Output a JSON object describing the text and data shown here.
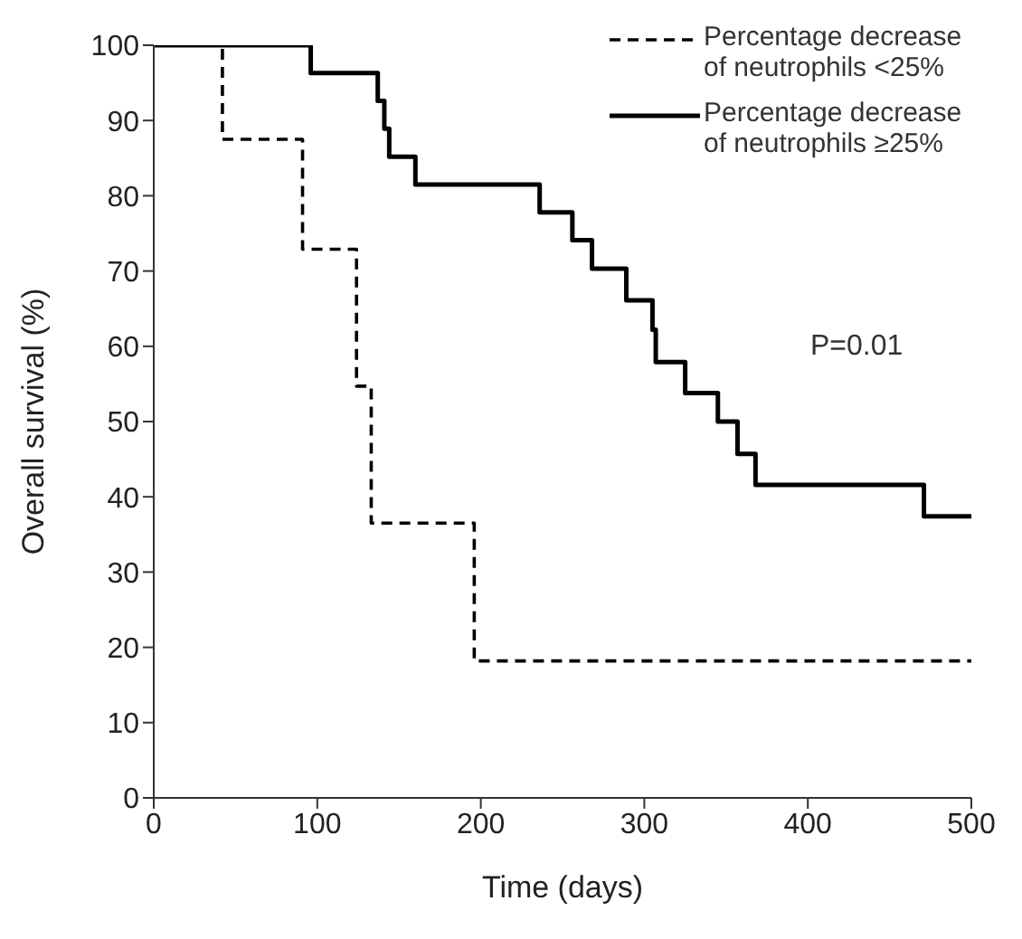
{
  "chart_data": {
    "type": "step",
    "xlabel": "Time (days)",
    "ylabel": "Overall survival (%)",
    "xlim": [
      0,
      500
    ],
    "xticks": [
      0,
      100,
      200,
      300,
      400,
      500
    ],
    "ylim": [
      0,
      100
    ],
    "yticks": [
      0,
      10,
      20,
      30,
      40,
      50,
      60,
      70,
      80,
      90,
      100
    ],
    "legend": "top right",
    "marker": "none",
    "series": [
      {
        "name": "Percentage decrease of neutrophils <25%",
        "color": "#000000",
        "line_style": "dashed",
        "x": [
          0,
          42,
          91,
          124,
          133,
          196,
          500
        ],
        "values": [
          100,
          87.5,
          72.9,
          54.7,
          36.5,
          18.2,
          18.2
        ]
      },
      {
        "name": "Percentage decrease of neutrophils ≥25%",
        "color": "#000000",
        "line_style": "solid",
        "x": [
          0,
          96,
          137,
          141,
          144,
          160,
          236,
          256,
          268,
          289,
          305,
          307,
          325,
          345,
          357,
          368,
          471,
          500
        ],
        "values": [
          100,
          96.3,
          92.6,
          88.9,
          85.2,
          81.5,
          77.8,
          74.1,
          70.3,
          66.1,
          62.2,
          57.9,
          53.8,
          50,
          45.7,
          41.6,
          37.4,
          37.4
        ]
      }
    ],
    "annotations": [
      "P=0.01"
    ]
  }
}
